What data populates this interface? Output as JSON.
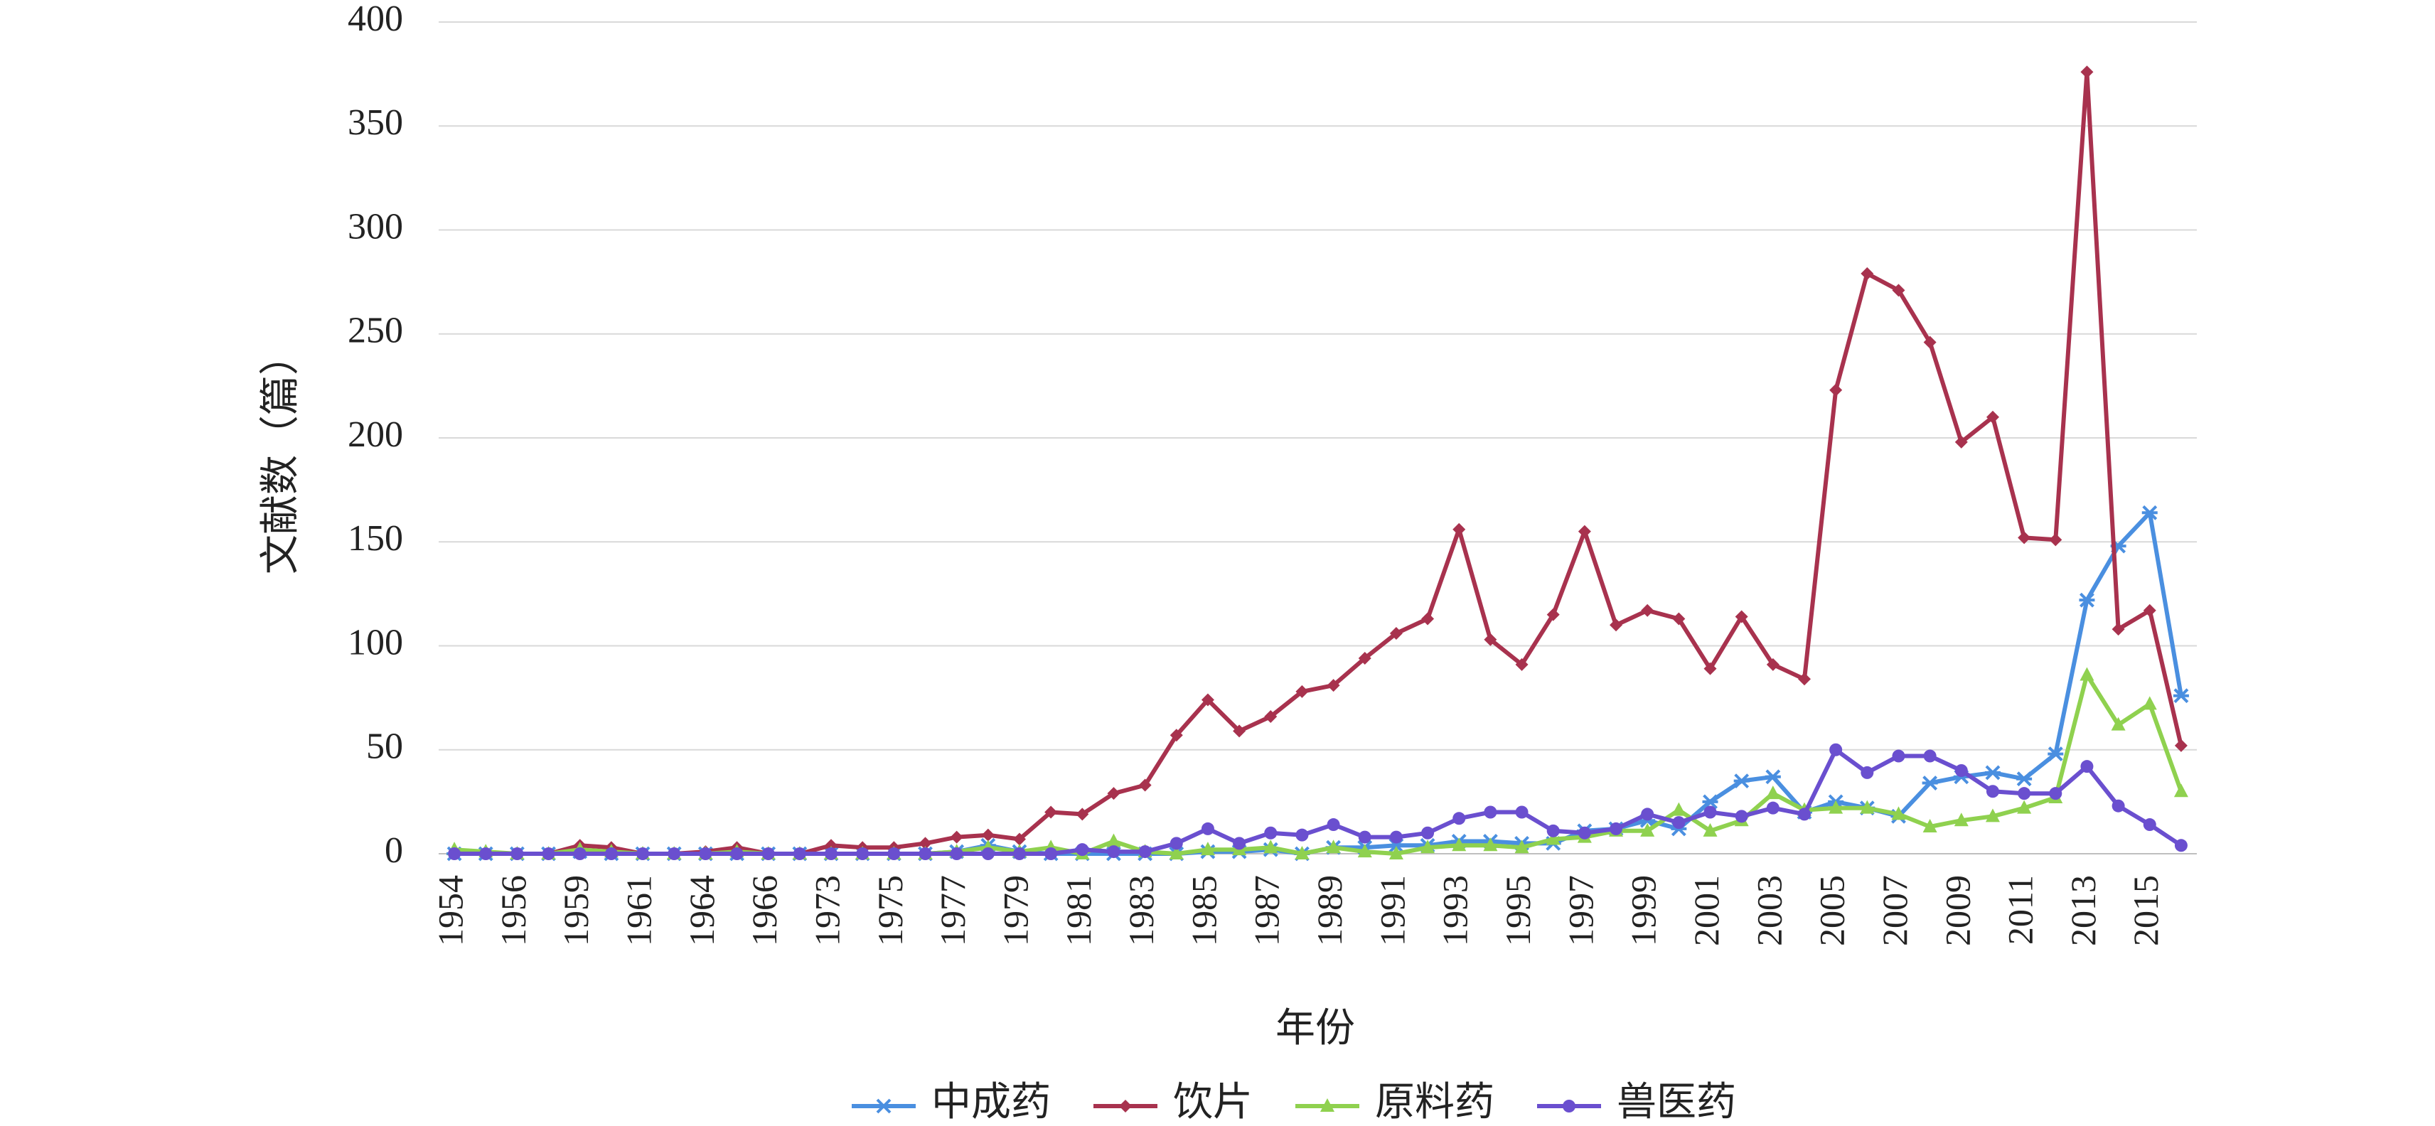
{
  "chart_data": {
    "type": "line",
    "xlabel": "年份",
    "ylabel": "文献数（篇）",
    "categories": [
      "1954",
      null,
      "1956",
      null,
      "1959",
      null,
      "1961",
      null,
      "1964",
      null,
      "1966",
      null,
      "1973",
      null,
      "1975",
      null,
      "1977",
      null,
      "1979",
      null,
      "1981",
      null,
      "1983",
      null,
      "1985",
      null,
      "1987",
      null,
      "1989",
      null,
      "1991",
      null,
      "1993",
      null,
      "1995",
      null,
      "1997",
      null,
      "1999",
      null,
      "2001",
      null,
      "2003",
      null,
      "2005",
      null,
      "2007",
      null,
      "2009",
      null,
      "2011",
      null,
      "2013",
      null,
      "2015",
      null
    ],
    "series": [
      {
        "name": "中成药",
        "color": "#4a8fe0",
        "marker": "star",
        "values": [
          0,
          0,
          0,
          0,
          1,
          0,
          0,
          0,
          0,
          0,
          0,
          0,
          0,
          0,
          0,
          0,
          1,
          4,
          1,
          0,
          0,
          0,
          0,
          0,
          1,
          1,
          2,
          0,
          3,
          3,
          4,
          4,
          6,
          6,
          5,
          5,
          11,
          12,
          16,
          12,
          25,
          35,
          37,
          20,
          25,
          22,
          18,
          34,
          37,
          39,
          36,
          48,
          122,
          148,
          164,
          76
        ]
      },
      {
        "name": "饮片",
        "color": "#a8324e",
        "marker": "diamond",
        "values": [
          0,
          0,
          0,
          0,
          4,
          3,
          0,
          0,
          1,
          3,
          0,
          0,
          4,
          3,
          3,
          5,
          8,
          9,
          7,
          20,
          19,
          29,
          33,
          57,
          74,
          59,
          66,
          78,
          81,
          94,
          106,
          113,
          156,
          103,
          91,
          115,
          155,
          110,
          117,
          113,
          89,
          114,
          91,
          84,
          223,
          279,
          271,
          246,
          198,
          210,
          152,
          151,
          376,
          108,
          117,
          52
        ]
      },
      {
        "name": "原料药",
        "color": "#8fd14f",
        "marker": "triangle",
        "values": [
          2,
          1,
          0,
          0,
          2,
          1,
          0,
          0,
          0,
          1,
          0,
          0,
          0,
          0,
          0,
          0,
          1,
          3,
          1,
          3,
          0,
          6,
          1,
          0,
          2,
          2,
          3,
          0,
          3,
          1,
          0,
          3,
          4,
          4,
          3,
          7,
          8,
          11,
          11,
          21,
          11,
          16,
          29,
          21,
          22,
          22,
          19,
          13,
          16,
          18,
          22,
          27,
          86,
          62,
          72,
          30
        ]
      },
      {
        "name": "兽医药",
        "color": "#6a4fcf",
        "marker": "circle",
        "values": [
          0,
          0,
          0,
          0,
          0,
          0,
          0,
          0,
          0,
          0,
          0,
          0,
          0,
          0,
          0,
          0,
          0,
          0,
          0,
          0,
          2,
          1,
          1,
          5,
          12,
          5,
          10,
          9,
          14,
          8,
          8,
          10,
          17,
          20,
          20,
          11,
          10,
          12,
          19,
          15,
          20,
          18,
          22,
          19,
          50,
          39,
          47,
          47,
          40,
          30,
          29,
          29,
          42,
          23,
          14,
          4
        ]
      }
    ],
    "ylim": [
      0,
      400
    ],
    "yticks": [
      0,
      50,
      100,
      150,
      200,
      250,
      300,
      350,
      400
    ],
    "grid": true,
    "legend": "bottom"
  }
}
